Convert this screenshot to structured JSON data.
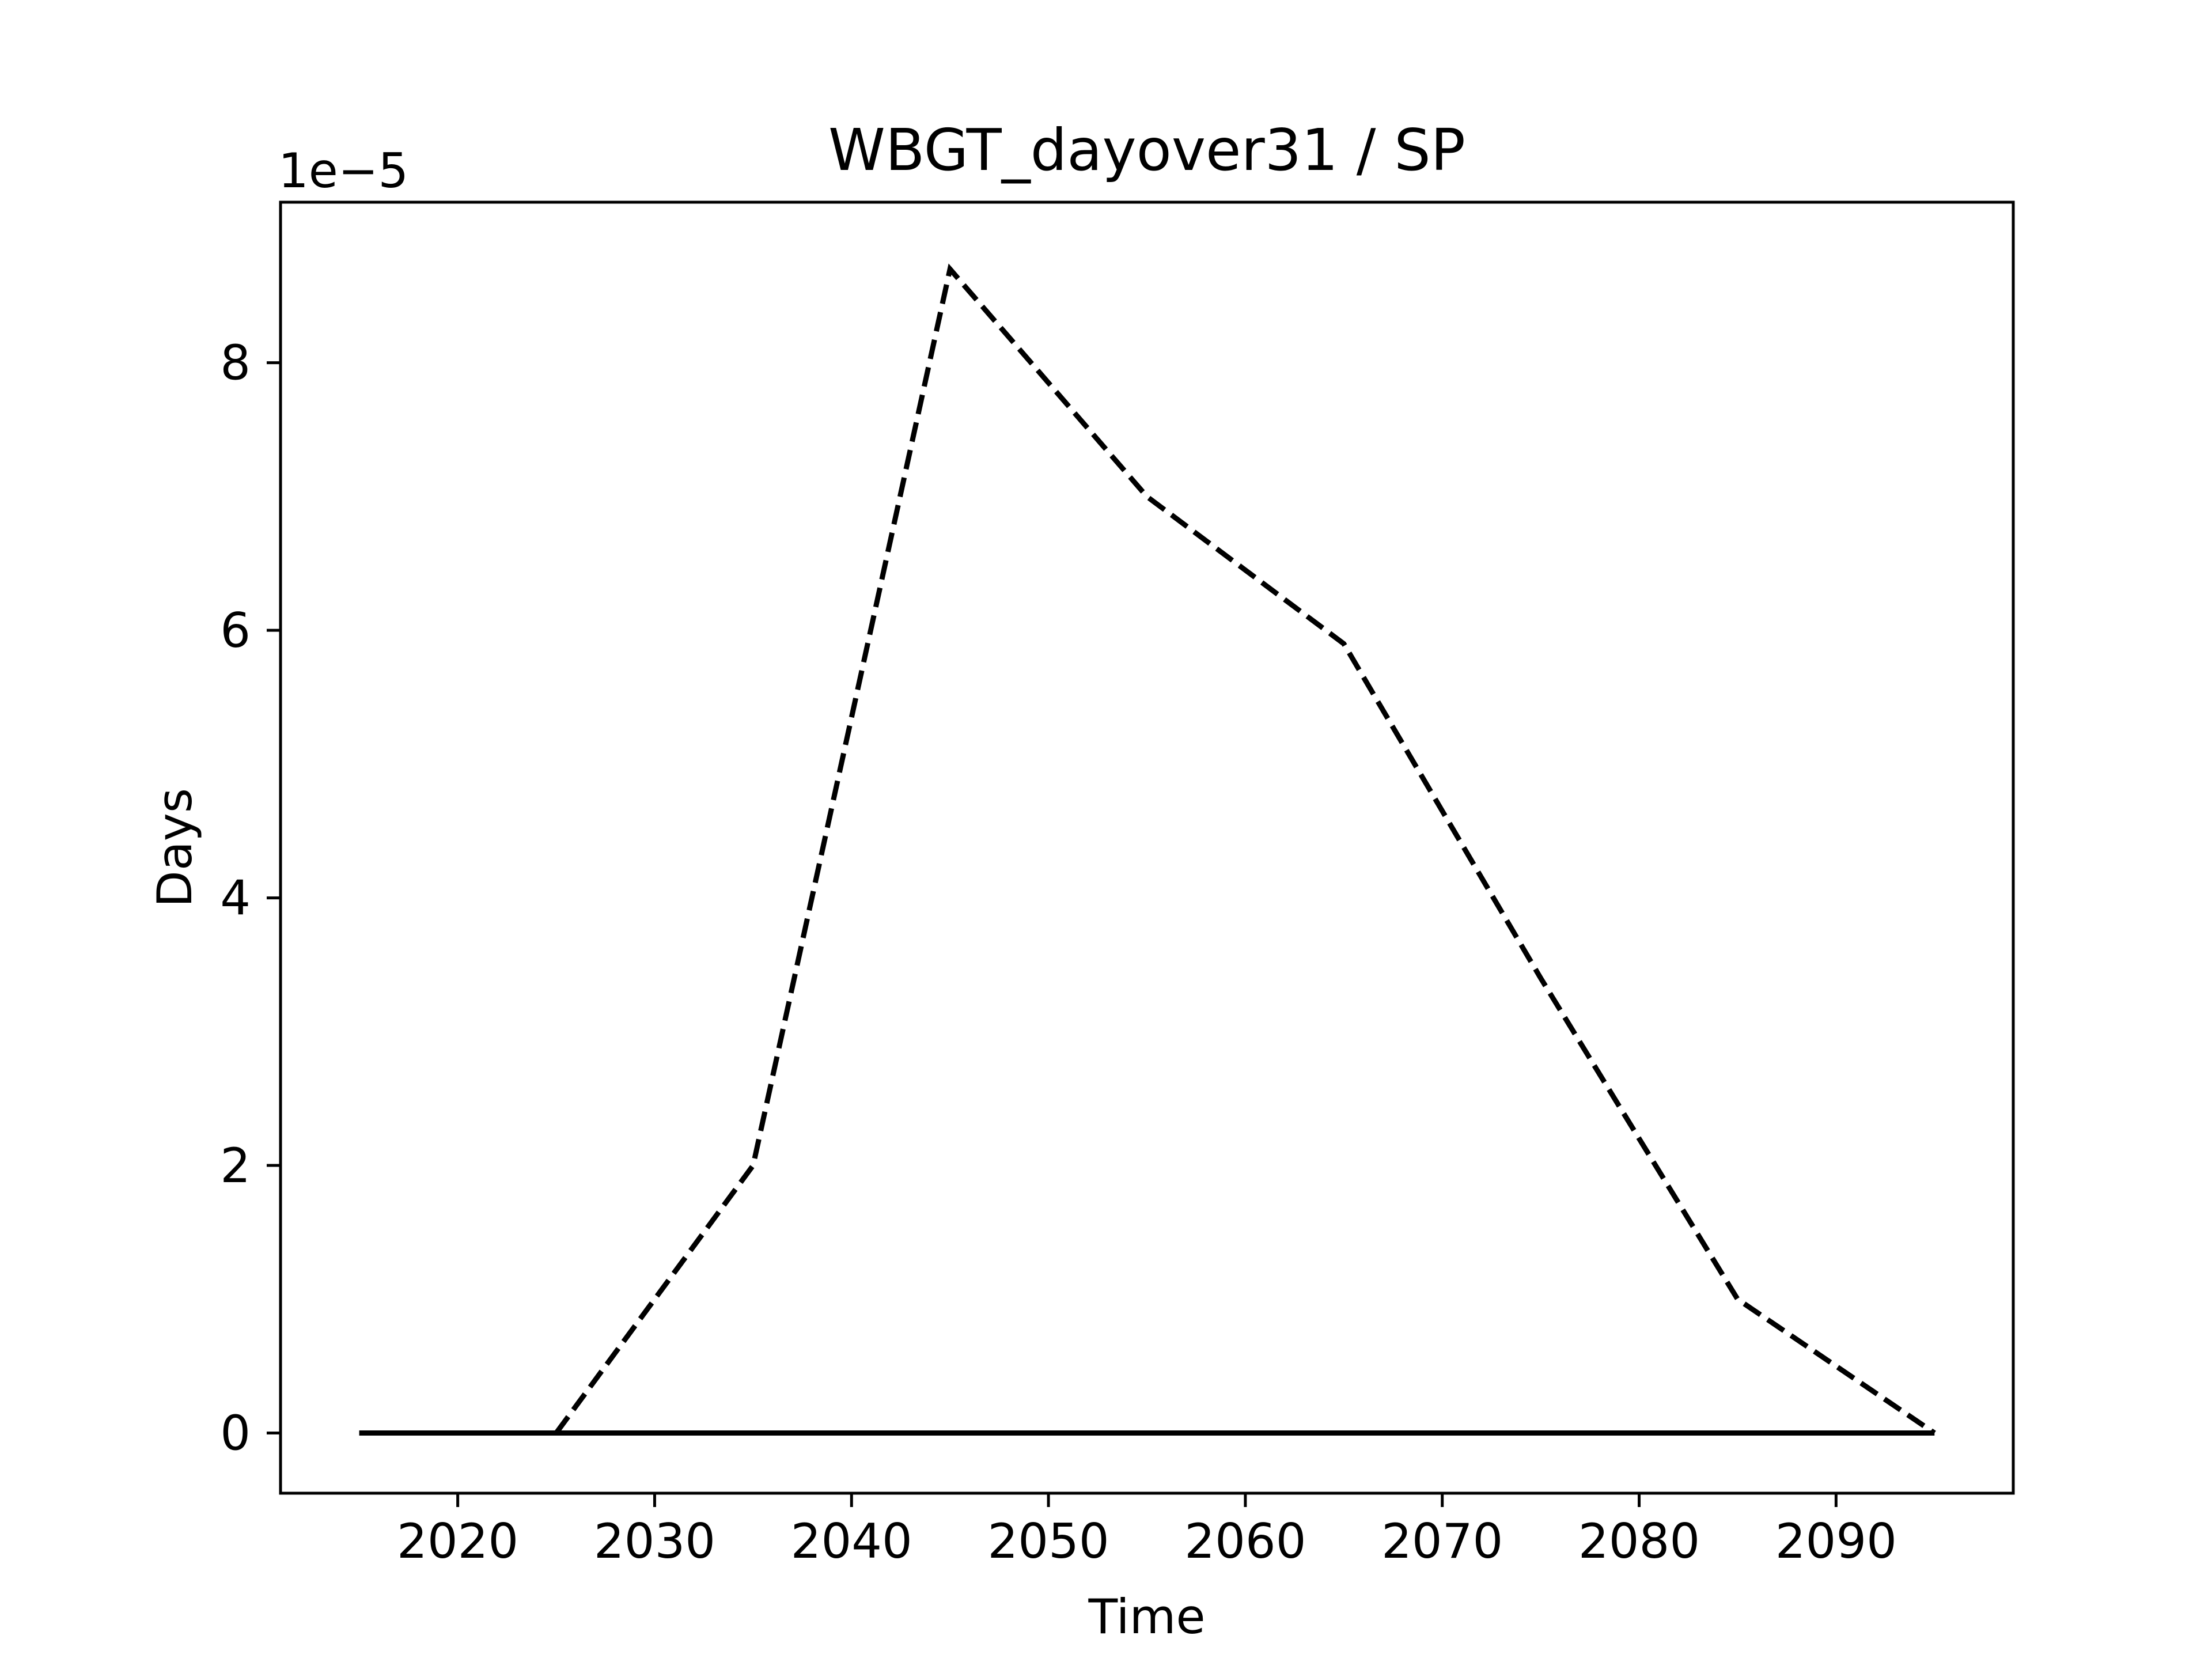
{
  "chart_data": {
    "type": "line",
    "title": "WBGT_dayover31 / SP",
    "xlabel": "Time",
    "ylabel": "Days",
    "y_offset_label": "1e−5",
    "y_scale_factor": 1e-05,
    "xlim": [
      2011,
      2099
    ],
    "ylim": [
      -4.5e-06,
      9.2e-05
    ],
    "x_ticks": [
      2020,
      2030,
      2040,
      2050,
      2060,
      2070,
      2080,
      2090
    ],
    "y_ticks": [
      0,
      2e-05,
      4e-05,
      6e-05,
      8e-05
    ],
    "x_tick_labels": [
      "2020",
      "2030",
      "2040",
      "2050",
      "2060",
      "2070",
      "2080",
      "2090"
    ],
    "y_tick_labels": [
      "0",
      "2",
      "4",
      "6",
      "8"
    ],
    "grid": false,
    "legend": "none",
    "x": [
      2015,
      2025,
      2035,
      2045,
      2055,
      2065,
      2075,
      2085,
      2095
    ],
    "series": [
      {
        "style": "dashed",
        "color": "#000000",
        "values": [
          0,
          0,
          2e-05,
          8.7e-05,
          7e-05,
          5.9e-05,
          3.4e-05,
          1e-05,
          0
        ]
      },
      {
        "style": "solid",
        "color": "#000000",
        "values": [
          0,
          0,
          0,
          0,
          0,
          0,
          0,
          0,
          0
        ]
      }
    ]
  }
}
